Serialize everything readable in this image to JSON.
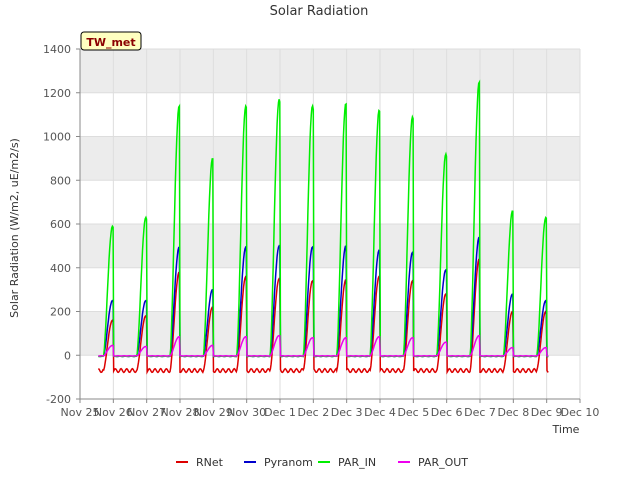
{
  "chart_data": {
    "type": "line",
    "title": "Solar Radiation",
    "xlabel": "Time",
    "ylabel": "Solar Radiation (W/m2, uE/m2/s)",
    "badge": "TW_met",
    "xlim": [
      0,
      15
    ],
    "ylim": [
      -200,
      1400
    ],
    "yticks": [
      -200,
      0,
      200,
      400,
      600,
      800,
      1000,
      1200,
      1400
    ],
    "xticks": [
      {
        "pos": 0,
        "label": "Nov 25"
      },
      {
        "pos": 1,
        "label": "Nov 26"
      },
      {
        "pos": 2,
        "label": "Nov 27"
      },
      {
        "pos": 3,
        "label": "Nov 28"
      },
      {
        "pos": 4,
        "label": "Nov 29"
      },
      {
        "pos": 5,
        "label": "Nov 30"
      },
      {
        "pos": 6,
        "label": "Dec 1"
      },
      {
        "pos": 7,
        "label": "Dec 2"
      },
      {
        "pos": 8,
        "label": "Dec 3"
      },
      {
        "pos": 9,
        "label": "Dec 4"
      },
      {
        "pos": 10,
        "label": "Dec 5"
      },
      {
        "pos": 11,
        "label": "Dec 6"
      },
      {
        "pos": 12,
        "label": "Dec 7"
      },
      {
        "pos": 13,
        "label": "Dec 8"
      },
      {
        "pos": 14,
        "label": "Dec 9"
      },
      {
        "pos": 15,
        "label": "Dec 10"
      }
    ],
    "series": [
      {
        "name": "RNet",
        "color": "#dd0000",
        "day": 0.0,
        "night": -70,
        "peaks": [
          160,
          180,
          380,
          220,
          360,
          350,
          340,
          345,
          360,
          340,
          280,
          440,
          200,
          200
        ]
      },
      {
        "name": "Pyranom",
        "color": "#0000cc",
        "day": 0.0,
        "night": -5,
        "peaks": [
          250,
          250,
          495,
          300,
          495,
          500,
          495,
          500,
          480,
          470,
          390,
          540,
          280,
          250
        ]
      },
      {
        "name": "PAR_IN",
        "color": "#00ee00",
        "day": 0.0,
        "night": -5,
        "peaks": [
          590,
          630,
          1140,
          900,
          1140,
          1170,
          1140,
          1150,
          1120,
          1090,
          920,
          1250,
          660,
          630
        ]
      },
      {
        "name": "PAR_OUT",
        "color": "#ee00ee",
        "day": 0.0,
        "night": -3,
        "peaks": [
          45,
          40,
          85,
          45,
          85,
          90,
          80,
          80,
          85,
          80,
          60,
          90,
          35,
          35
        ]
      }
    ]
  }
}
